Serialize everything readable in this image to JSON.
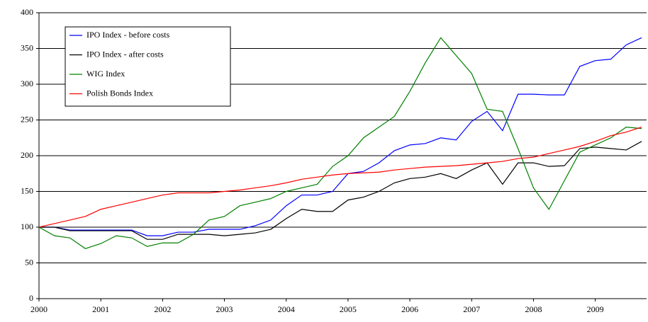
{
  "chart_data": {
    "type": "line",
    "x": [
      2000,
      2000.25,
      2000.5,
      2000.75,
      2001,
      2001.25,
      2001.5,
      2001.75,
      2002,
      2002.25,
      2002.5,
      2002.75,
      2003,
      2003.25,
      2003.5,
      2003.75,
      2004,
      2004.25,
      2004.5,
      2004.75,
      2005,
      2005.25,
      2005.5,
      2005.75,
      2006,
      2006.25,
      2006.5,
      2006.75,
      2007,
      2007.25,
      2007.5,
      2007.75,
      2008,
      2008.25,
      2008.5,
      2008.75,
      2009,
      2009.25,
      2009.5,
      2009.75
    ],
    "series": [
      {
        "name": "IPO Index - before costs",
        "color": "#0000ff",
        "values": [
          100,
          100,
          96,
          96,
          96,
          96,
          96,
          88,
          88,
          93,
          93,
          97,
          97,
          97,
          102,
          110,
          130,
          145,
          145,
          150,
          175,
          178,
          190,
          207,
          215,
          217,
          225,
          222,
          248,
          262,
          235,
          286,
          286,
          285,
          285,
          325,
          333,
          335,
          355,
          365
        ]
      },
      {
        "name": "IPO Index - after costs",
        "color": "#000000",
        "values": [
          100,
          100,
          95,
          95,
          95,
          95,
          95,
          83,
          83,
          90,
          90,
          90,
          88,
          90,
          92,
          97,
          112,
          125,
          122,
          122,
          138,
          142,
          150,
          162,
          168,
          170,
          175,
          168,
          180,
          190,
          160,
          190,
          190,
          185,
          186,
          210,
          212,
          210,
          208,
          220
        ]
      },
      {
        "name": "WIG Index",
        "color": "#008000",
        "values": [
          100,
          88,
          85,
          70,
          77,
          88,
          85,
          73,
          78,
          78,
          90,
          110,
          115,
          130,
          135,
          140,
          150,
          155,
          160,
          185,
          200,
          225,
          240,
          255,
          290,
          330,
          365,
          340,
          315,
          265,
          262,
          210,
          155,
          125,
          165,
          205,
          215,
          225,
          240,
          238
        ]
      },
      {
        "name": "Polish Bonds Index",
        "color": "#ff0000",
        "values": [
          100,
          105,
          110,
          115,
          125,
          130,
          135,
          140,
          145,
          148,
          148,
          148,
          150,
          152,
          155,
          158,
          162,
          167,
          170,
          173,
          175,
          176,
          177,
          180,
          182,
          184,
          185,
          186,
          188,
          190,
          192,
          196,
          198,
          203,
          208,
          213,
          220,
          228,
          233,
          240
        ]
      }
    ],
    "xlim": [
      2000,
      2009.83
    ],
    "xticks": [
      2000,
      2001,
      2002,
      2003,
      2004,
      2005,
      2006,
      2007,
      2008,
      2009
    ],
    "ylim": [
      0,
      400
    ],
    "yticks": [
      0,
      50,
      100,
      150,
      200,
      250,
      300,
      350,
      400
    ],
    "grid": true,
    "legend": "upper-left"
  }
}
